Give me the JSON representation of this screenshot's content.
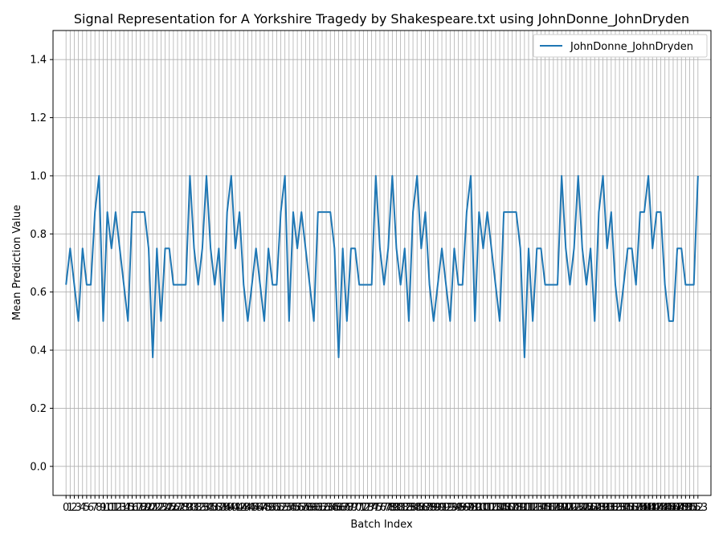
{
  "chart_data": {
    "type": "line",
    "title": "Signal Representation for A Yorkshire Tragedy by Shakespeare.txt using JohnDonne_JohnDryden",
    "xlabel": "Batch Index",
    "ylabel": "Mean Prediction Value",
    "xlim": [
      -3.15,
      156.15
    ],
    "ylim": [
      -0.1,
      1.5
    ],
    "y_ticks": [
      0.0,
      0.2,
      0.4,
      0.6,
      0.8,
      1.0,
      1.2,
      1.4
    ],
    "y_tick_labels": [
      "0.0",
      "0.2",
      "0.4",
      "0.6",
      "0.8",
      "1.0",
      "1.2",
      "1.4"
    ],
    "x_ticks_count": 154,
    "grid": true,
    "legend_position": "top-right",
    "series": [
      {
        "name": "JohnDonne_JohnDryden",
        "color": "#1f77b4",
        "values": [
          0.625,
          0.75,
          0.625,
          0.5,
          0.75,
          0.625,
          0.625,
          0.875,
          1.0,
          0.5,
          0.875,
          0.75,
          0.875,
          0.75,
          0.625,
          0.5,
          0.875,
          0.875,
          0.875,
          0.875,
          0.75,
          0.375,
          0.75,
          0.5,
          0.75,
          0.75,
          0.625,
          0.625,
          0.625,
          0.625,
          1.0,
          0.75,
          0.625,
          0.75,
          1.0,
          0.75,
          0.625,
          0.75,
          0.5,
          0.875,
          1.0,
          0.75,
          0.875,
          0.625,
          0.5,
          0.625,
          0.75,
          0.625,
          0.5,
          0.75,
          0.625,
          0.625,
          0.875,
          1.0,
          0.5,
          0.875,
          0.75,
          0.875,
          0.75,
          0.625,
          0.5,
          0.875,
          0.875,
          0.875,
          0.875,
          0.75,
          0.375,
          0.75,
          0.5,
          0.75,
          0.75,
          0.625,
          0.625,
          0.625,
          0.625,
          1.0,
          0.75,
          0.625,
          0.75,
          1.0,
          0.75,
          0.625,
          0.75,
          0.5,
          0.875,
          1.0,
          0.75,
          0.875,
          0.625,
          0.5,
          0.625,
          0.75,
          0.625,
          0.5,
          0.75,
          0.625,
          0.625,
          0.875,
          1.0,
          0.5,
          0.875,
          0.75,
          0.875,
          0.75,
          0.625,
          0.5,
          0.875,
          0.875,
          0.875,
          0.875,
          0.75,
          0.375,
          0.75,
          0.5,
          0.75,
          0.75,
          0.625,
          0.625,
          0.625,
          0.625,
          1.0,
          0.75,
          0.625,
          0.75,
          1.0,
          0.75,
          0.625,
          0.75,
          0.5,
          0.875,
          1.0,
          0.75,
          0.875,
          0.625,
          0.5,
          0.625,
          0.75,
          0.75,
          0.625,
          0.875,
          0.875,
          1.0,
          0.75,
          0.875,
          0.875,
          0.625,
          0.5,
          0.5,
          0.75,
          0.75,
          0.625,
          0.625,
          0.625,
          1.0
        ]
      }
    ]
  }
}
